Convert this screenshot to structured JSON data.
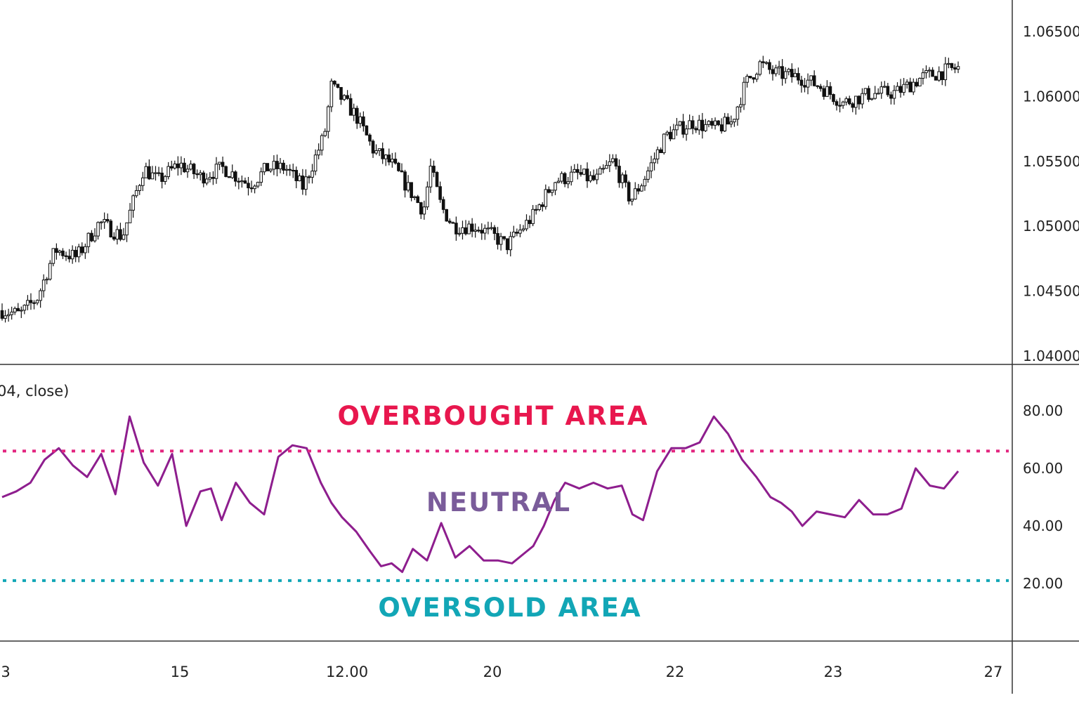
{
  "indicator_label": "04, close)",
  "price_axis_ticks": [
    "1.06500",
    "1.06000",
    "1.05500",
    "1.05000",
    "1.04500",
    "1.04000"
  ],
  "rsi_axis_ticks": [
    "80.00",
    "60.00",
    "40.00",
    "20.00"
  ],
  "time_axis_ticks": [
    "3",
    "15",
    "12.00",
    "20",
    "22",
    "23",
    "27"
  ],
  "zones": {
    "overbought_label": "OVERBOUGHT AREA",
    "neutral_label": "NEUTRAL",
    "oversold_label": "OVERSOLD AREA"
  },
  "colors": {
    "candle": "#111111",
    "rsi_line": "#8e1e8e",
    "overbought": "#e8174e",
    "overbought_line": "#e3257f",
    "neutral": "#7a5c9a",
    "oversold": "#12a6b6",
    "axis": "#333333"
  },
  "chart_data": [
    {
      "type": "candlestick",
      "title": "",
      "ylim": [
        1.04,
        1.066
      ],
      "y_ticks": [
        1.065,
        1.06,
        1.055,
        1.05,
        1.045,
        1.04
      ],
      "x_ticks": [
        "3",
        "15",
        "12.00",
        "20",
        "22",
        "23",
        "27"
      ],
      "close_path": [
        [
          0,
          1.0435
        ],
        [
          10,
          1.0432
        ],
        [
          20,
          1.0445
        ],
        [
          30,
          1.0482
        ],
        [
          42,
          1.0476
        ],
        [
          55,
          1.0503
        ],
        [
          68,
          1.0492
        ],
        [
          80,
          1.0545
        ],
        [
          88,
          1.0535
        ],
        [
          100,
          1.0548
        ],
        [
          112,
          1.0538
        ],
        [
          125,
          1.0545
        ],
        [
          140,
          1.0532
        ],
        [
          150,
          1.0545
        ],
        [
          160,
          1.0545
        ],
        [
          170,
          1.053
        ],
        [
          182,
          1.057
        ],
        [
          186,
          1.0608
        ],
        [
          192,
          1.0598
        ],
        [
          200,
          1.0585
        ],
        [
          210,
          1.0558
        ],
        [
          220,
          1.0548
        ],
        [
          230,
          1.0528
        ],
        [
          238,
          1.0512
        ],
        [
          242,
          1.0545
        ],
        [
          248,
          1.0515
        ],
        [
          255,
          1.05
        ],
        [
          268,
          1.05
        ],
        [
          278,
          1.0492
        ],
        [
          285,
          1.0485
        ],
        [
          300,
          1.0508
        ],
        [
          312,
          1.0535
        ],
        [
          325,
          1.054
        ],
        [
          335,
          1.0535
        ],
        [
          345,
          1.055
        ],
        [
          355,
          1.052
        ],
        [
          362,
          1.0535
        ],
        [
          375,
          1.057
        ],
        [
          390,
          1.058
        ],
        [
          402,
          1.0575
        ],
        [
          412,
          1.058
        ],
        [
          420,
          1.061
        ],
        [
          428,
          1.0625
        ],
        [
          436,
          1.0618
        ],
        [
          450,
          1.0615
        ],
        [
          462,
          1.0608
        ],
        [
          475,
          1.0595
        ],
        [
          490,
          1.0602
        ],
        [
          505,
          1.0603
        ],
        [
          520,
          1.0615
        ],
        [
          540,
          1.0622
        ]
      ]
    },
    {
      "type": "line",
      "title": "",
      "ylim": [
        0,
        100
      ],
      "y_ticks": [
        80,
        60,
        40,
        20
      ],
      "overbought_level": 66,
      "oversold_level": 21,
      "x": [
        0,
        8,
        16,
        24,
        32,
        40,
        48,
        56,
        64,
        72,
        80,
        88,
        96,
        104,
        112,
        118,
        124,
        132,
        140,
        148,
        156,
        164,
        172,
        180,
        186,
        192,
        200,
        208,
        214,
        220,
        226,
        232,
        240,
        248,
        256,
        264,
        272,
        280,
        288,
        296,
        300,
        306,
        312,
        318,
        326,
        334,
        342,
        350,
        356,
        362,
        370,
        378,
        386,
        394,
        402,
        410,
        418,
        426,
        434,
        440,
        446,
        452,
        460,
        468,
        476,
        484,
        492,
        500,
        508,
        516,
        524,
        532,
        540
      ],
      "values": [
        50,
        52,
        55,
        63,
        67,
        61,
        57,
        65,
        51,
        78,
        62,
        54,
        65,
        40,
        52,
        53,
        42,
        55,
        48,
        44,
        64,
        68,
        67,
        55,
        48,
        43,
        38,
        31,
        26,
        27,
        24,
        32,
        28,
        41,
        29,
        33,
        28,
        28,
        27,
        31,
        33,
        40,
        49,
        55,
        53,
        55,
        53,
        54,
        44,
        42,
        59,
        67,
        67,
        69,
        78,
        72,
        63,
        57,
        50,
        48,
        45,
        40,
        45,
        44,
        43,
        49,
        44,
        44,
        46,
        60,
        54,
        53,
        59
      ]
    }
  ]
}
